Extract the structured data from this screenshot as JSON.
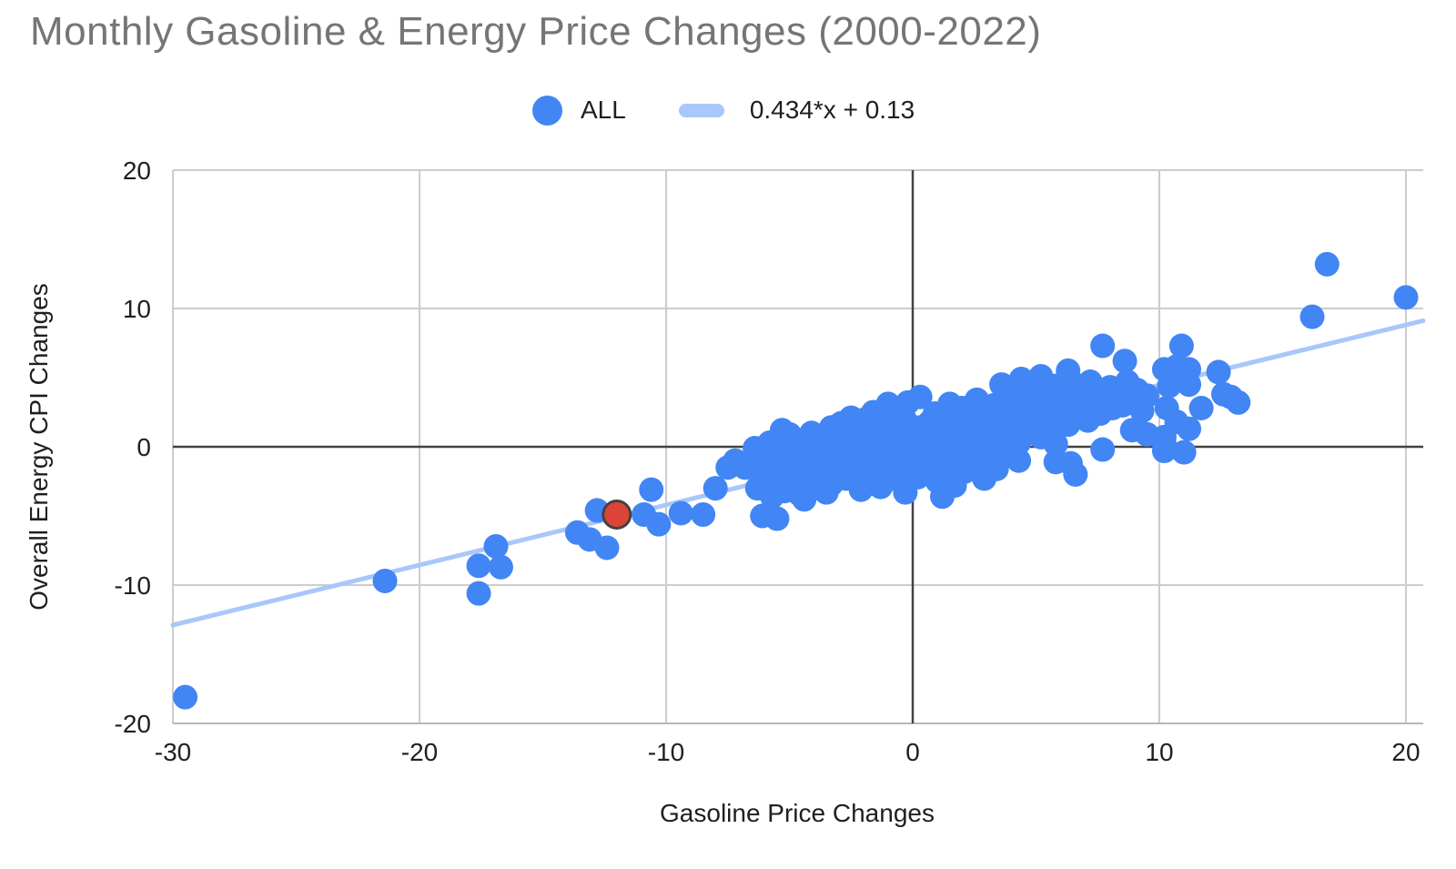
{
  "title": "Monthly Gasoline & Energy Price Changes (2000-2022)",
  "legend": {
    "series_label": "ALL",
    "trendline_label": "0.434*x + 0.13"
  },
  "colors": {
    "title_text": "#757575",
    "point": "#4285f4",
    "trendline": "#a8c7fa",
    "highlight_fill": "#db4437",
    "highlight_stroke": "#424242",
    "gridline": "#cccccc",
    "zero_line": "#424242",
    "baseline": "#b7b7b7",
    "axis_text": "#1f1f1f"
  },
  "chart_data": {
    "type": "scatter",
    "title": "Monthly Gasoline & Energy Price Changes (2000-2022)",
    "xlabel": "Gasoline Price Changes",
    "ylabel": "Overall Energy CPI Changes",
    "xlim": [
      -30,
      20.7
    ],
    "ylim": [
      -20,
      20
    ],
    "x_ticks": [
      -30,
      -20,
      -10,
      0,
      10,
      20
    ],
    "y_ticks": [
      20,
      10,
      0,
      -10,
      -20
    ],
    "grid": true,
    "legend_position": "top-center",
    "trendline": {
      "slope": 0.434,
      "intercept": 0.13,
      "label": "0.434*x + 0.13"
    },
    "highlight_point": {
      "x": -12.0,
      "y": -4.9
    },
    "series": [
      {
        "name": "ALL",
        "points": [
          [
            -29.5,
            -18.1
          ],
          [
            -21.4,
            -9.7
          ],
          [
            -17.6,
            -10.6
          ],
          [
            -17.6,
            -8.6
          ],
          [
            -16.9,
            -7.2
          ],
          [
            -16.7,
            -8.7
          ],
          [
            -13.6,
            -6.2
          ],
          [
            -13.1,
            -6.7
          ],
          [
            -12.8,
            -4.6
          ],
          [
            -12.4,
            -7.3
          ],
          [
            -10.9,
            -4.9
          ],
          [
            -10.6,
            -3.1
          ],
          [
            -10.3,
            -5.6
          ],
          [
            -9.4,
            -4.8
          ],
          [
            -8.5,
            -4.9
          ],
          [
            -8.0,
            -3.0
          ],
          [
            -7.5,
            -1.5
          ],
          [
            -7.2,
            -1.0
          ],
          [
            -6.1,
            -5.0
          ],
          [
            -5.5,
            -5.2
          ],
          [
            -6.8,
            -1.5
          ],
          [
            -6.4,
            -0.1
          ],
          [
            -6.3,
            -3.0
          ],
          [
            -6.2,
            -2.0
          ],
          [
            -6.0,
            -1.1
          ],
          [
            -5.9,
            -2.9
          ],
          [
            -5.8,
            0.3
          ],
          [
            -5.7,
            -3.6
          ],
          [
            -5.6,
            -1.6
          ],
          [
            -5.4,
            -2.4
          ],
          [
            -5.3,
            1.2
          ],
          [
            -5.3,
            -0.6
          ],
          [
            -5.2,
            -3.2
          ],
          [
            -5.1,
            -1.9
          ],
          [
            -5.0,
            0.9
          ],
          [
            -5.0,
            -0.9
          ],
          [
            -4.9,
            -2.6
          ],
          [
            -4.8,
            -1.4
          ],
          [
            -4.7,
            0.1
          ],
          [
            -4.6,
            -3.4
          ],
          [
            -4.5,
            -2.1
          ],
          [
            -4.4,
            -1.0
          ],
          [
            -4.4,
            -3.8
          ],
          [
            -4.3,
            -2.9
          ],
          [
            -4.2,
            -0.3
          ],
          [
            -4.1,
            1.0
          ],
          [
            -4.1,
            -1.7
          ],
          [
            -4.0,
            -2.5
          ],
          [
            -3.9,
            -1.2
          ],
          [
            -3.8,
            -3.0
          ],
          [
            -3.7,
            -0.7
          ],
          [
            -3.6,
            -2.2
          ],
          [
            -3.5,
            -1.5
          ],
          [
            -3.5,
            -3.3
          ],
          [
            -3.4,
            0.2
          ],
          [
            -3.3,
            1.4
          ],
          [
            -3.3,
            -2.7
          ],
          [
            -3.2,
            -1.1
          ],
          [
            -3.1,
            -1.9
          ],
          [
            -3.0,
            -0.4
          ],
          [
            -2.9,
            -1.6
          ],
          [
            -2.9,
            1.7
          ],
          [
            -2.8,
            0.4
          ],
          [
            -2.7,
            -2.3
          ],
          [
            -2.6,
            -0.8
          ],
          [
            -2.5,
            -1.8
          ],
          [
            -2.5,
            2.1
          ],
          [
            -2.4,
            0.8
          ],
          [
            -2.3,
            -1.3
          ],
          [
            -2.2,
            -2.6
          ],
          [
            -2.2,
            1.0
          ],
          [
            -2.1,
            0.1
          ],
          [
            -2.1,
            -3.1
          ],
          [
            -2.0,
            -0.9
          ],
          [
            -1.9,
            -1.9
          ],
          [
            -1.9,
            2.0
          ],
          [
            -1.8,
            1.2
          ],
          [
            -1.7,
            -0.2
          ],
          [
            -1.6,
            -2.4
          ],
          [
            -1.6,
            2.5
          ],
          [
            -1.5,
            -1.0
          ],
          [
            -1.5,
            -1.4
          ],
          [
            -1.4,
            0.5
          ],
          [
            -1.3,
            -1.6
          ],
          [
            -1.3,
            -2.9
          ],
          [
            -1.2,
            -0.5
          ],
          [
            -1.1,
            1.6
          ],
          [
            -1.1,
            0.2
          ],
          [
            -1.0,
            -2.1
          ],
          [
            -1.0,
            3.1
          ],
          [
            -0.9,
            -0.1
          ],
          [
            -0.9,
            1.4
          ],
          [
            -0.8,
            -1.3
          ],
          [
            -0.8,
            2.8
          ],
          [
            -0.7,
            0.9
          ],
          [
            -0.6,
            -1.8
          ],
          [
            -0.5,
            0.3
          ],
          [
            -0.5,
            -2.5
          ],
          [
            -0.4,
            -0.8
          ],
          [
            -0.3,
            1.9
          ],
          [
            -0.3,
            -3.3
          ],
          [
            -0.2,
            -1.4
          ],
          [
            -0.2,
            3.2
          ],
          [
            -0.1,
            0.6
          ],
          [
            0.0,
            -0.3
          ],
          [
            0.1,
            0.5
          ],
          [
            0.2,
            -0.9
          ],
          [
            0.3,
            1.4
          ],
          [
            0.3,
            3.6
          ],
          [
            0.4,
            -0.2
          ],
          [
            0.5,
            0.9
          ],
          [
            0.5,
            -1.8
          ],
          [
            0.6,
            -1.5
          ],
          [
            0.7,
            1.8
          ],
          [
            0.8,
            0.2
          ],
          [
            0.9,
            -0.7
          ],
          [
            0.9,
            2.4
          ],
          [
            1.0,
            1.1
          ],
          [
            1.1,
            -1.9
          ],
          [
            1.2,
            0.7
          ],
          [
            1.2,
            -3.6
          ],
          [
            1.3,
            2.2
          ],
          [
            1.4,
            -0.4
          ],
          [
            1.5,
            1.5
          ],
          [
            1.5,
            3.1
          ],
          [
            1.6,
            0.1
          ],
          [
            1.7,
            -1.2
          ],
          [
            1.7,
            -2.8
          ],
          [
            1.8,
            2.6
          ],
          [
            1.9,
            0.9
          ],
          [
            2.0,
            -0.6
          ],
          [
            2.0,
            2.8
          ],
          [
            2.1,
            1.9
          ],
          [
            2.2,
            0.4
          ],
          [
            2.3,
            -1.4
          ],
          [
            2.4,
            2.9
          ],
          [
            2.5,
            1.2
          ],
          [
            2.6,
            0.0
          ],
          [
            2.6,
            3.4
          ],
          [
            2.7,
            2.3
          ],
          [
            2.8,
            0.8
          ],
          [
            2.9,
            -0.9
          ],
          [
            3.0,
            1.6
          ],
          [
            0.2,
            -2.2
          ],
          [
            1.0,
            -2.5
          ],
          [
            2.1,
            -1.8
          ],
          [
            2.9,
            -2.3
          ],
          [
            1.7,
            1.0
          ],
          [
            2.4,
            1.5
          ],
          [
            1.0,
            0.4
          ],
          [
            3.1,
            2.0
          ],
          [
            3.2,
            0.6
          ],
          [
            3.3,
            3.0
          ],
          [
            3.4,
            1.2
          ],
          [
            3.4,
            -1.6
          ],
          [
            3.5,
            2.5
          ],
          [
            3.6,
            -0.5
          ],
          [
            3.6,
            4.5
          ],
          [
            3.7,
            1.7
          ],
          [
            3.8,
            3.3
          ],
          [
            3.9,
            0.9
          ],
          [
            4.0,
            2.2
          ],
          [
            4.1,
            1.4
          ],
          [
            4.2,
            3.6
          ],
          [
            4.3,
            0.3
          ],
          [
            4.3,
            -1.0
          ],
          [
            4.4,
            2.8
          ],
          [
            4.4,
            4.9
          ],
          [
            4.5,
            1.8
          ],
          [
            4.6,
            4.0
          ],
          [
            4.7,
            1.0
          ],
          [
            4.8,
            2.4
          ],
          [
            4.9,
            3.2
          ],
          [
            4.9,
            4.2
          ],
          [
            5.0,
            1.5
          ],
          [
            5.1,
            2.9
          ],
          [
            5.2,
            0.7
          ],
          [
            5.2,
            5.1
          ],
          [
            5.3,
            3.7
          ],
          [
            5.4,
            2.1
          ],
          [
            5.5,
            1.1
          ],
          [
            5.6,
            3.0
          ],
          [
            5.7,
            2.5
          ],
          [
            5.8,
            0.2
          ],
          [
            5.8,
            4.4
          ],
          [
            5.8,
            -1.1
          ],
          [
            5.9,
            3.4
          ],
          [
            6.0,
            1.8
          ],
          [
            6.1,
            2.9
          ],
          [
            6.2,
            4.1
          ],
          [
            6.3,
            1.6
          ],
          [
            6.3,
            5.5
          ],
          [
            6.4,
            -1.2
          ],
          [
            6.5,
            3.3
          ],
          [
            6.6,
            2.2
          ],
          [
            6.6,
            -2.0
          ],
          [
            6.8,
            4.4
          ],
          [
            6.9,
            2.7
          ],
          [
            7.0,
            3.8
          ],
          [
            7.1,
            1.9
          ],
          [
            7.2,
            4.7
          ],
          [
            7.3,
            3.1
          ],
          [
            7.6,
            2.4
          ],
          [
            7.7,
            7.3
          ],
          [
            7.7,
            -0.2
          ],
          [
            7.8,
            3.5
          ],
          [
            8.0,
            4.3
          ],
          [
            8.1,
            2.8
          ],
          [
            8.3,
            3.9
          ],
          [
            8.5,
            3.0
          ],
          [
            8.6,
            6.2
          ],
          [
            8.7,
            4.7
          ],
          [
            8.9,
            3.4
          ],
          [
            8.9,
            1.2
          ],
          [
            9.1,
            4.1
          ],
          [
            9.3,
            2.6
          ],
          [
            9.5,
            3.7
          ],
          [
            9.5,
            0.9
          ],
          [
            10.2,
            5.6
          ],
          [
            10.2,
            0.7
          ],
          [
            10.2,
            0.2
          ],
          [
            10.2,
            -0.3
          ],
          [
            10.3,
            2.8
          ],
          [
            10.4,
            4.4
          ],
          [
            10.7,
            5.8
          ],
          [
            10.7,
            1.8
          ],
          [
            10.9,
            7.3
          ],
          [
            11.0,
            -0.4
          ],
          [
            11.2,
            5.6
          ],
          [
            11.2,
            4.5
          ],
          [
            11.2,
            1.3
          ],
          [
            11.7,
            2.8
          ],
          [
            12.4,
            5.4
          ],
          [
            12.6,
            3.8
          ],
          [
            12.9,
            3.6
          ],
          [
            13.2,
            3.2
          ],
          [
            16.2,
            9.4
          ],
          [
            16.8,
            13.2
          ],
          [
            20.0,
            10.8
          ]
        ]
      }
    ]
  }
}
